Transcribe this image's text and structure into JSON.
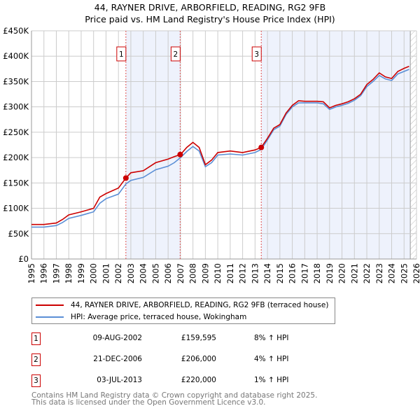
{
  "title_line1": "44, RAYNER DRIVE, ARBORFIELD, READING, RG2 9FB",
  "title_line2": "Price paid vs. HM Land Registry's House Price Index (HPI)",
  "chart_data": {
    "type": "line",
    "title": "44, RAYNER DRIVE, ARBORFIELD, READING, RG2 9FB — Price paid vs. HM Land Registry's House Price Index (HPI)",
    "xlim": [
      1995,
      2026
    ],
    "ylim": [
      0,
      450000
    ],
    "y_ticks": [
      0,
      50000,
      100000,
      150000,
      200000,
      250000,
      300000,
      350000,
      400000,
      450000
    ],
    "y_tick_labels": [
      "£0",
      "£50K",
      "£100K",
      "£150K",
      "£200K",
      "£250K",
      "£300K",
      "£350K",
      "£400K",
      "£450K"
    ],
    "x_tick_labels": [
      "1995",
      "1996",
      "1997",
      "1998",
      "1999",
      "2000",
      "2001",
      "2002",
      "2003",
      "2004",
      "2005",
      "2006",
      "2007",
      "2008",
      "2009",
      "2010",
      "2011",
      "2012",
      "2013",
      "2014",
      "2015",
      "2016",
      "2017",
      "2018",
      "2019",
      "2020",
      "2021",
      "2022",
      "2023",
      "2024",
      "2025",
      "2026"
    ],
    "grid": true,
    "colors": {
      "property": "#cc0000",
      "hpi": "#5b8fd6",
      "shade": "#eef2fc"
    },
    "shaded_periods": [
      [
        2002.6,
        2006.97
      ],
      [
        2013.5,
        2025.5
      ]
    ],
    "forecast_hatch_from": 2025.5,
    "series": [
      {
        "name": "44, RAYNER DRIVE, ARBORFIELD, READING, RG2 9FB (terraced house)",
        "color": "#cc0000",
        "x": [
          1995,
          1996,
          1997,
          1997.5,
          1998,
          1999,
          2000,
          2000.5,
          2001,
          2002,
          2002.6,
          2003,
          2004,
          2005,
          2006,
          2006.5,
          2007,
          2007.5,
          2008,
          2008.5,
          2009,
          2009.5,
          2010,
          2011,
          2012,
          2013,
          2013.5,
          2014,
          2014.5,
          2015,
          2015.5,
          2016,
          2016.5,
          2017,
          2018,
          2018.5,
          2019,
          2019.5,
          2020,
          2020.5,
          2021,
          2021.5,
          2022,
          2022.5,
          2023,
          2023.5,
          2024,
          2024.5,
          2025,
          2025.4
        ],
        "y": [
          68000,
          68000,
          71000,
          78000,
          87000,
          93000,
          100000,
          122000,
          129000,
          140000,
          159595,
          170000,
          174000,
          190000,
          197000,
          202000,
          206000,
          220000,
          230000,
          220000,
          186000,
          195000,
          210000,
          213000,
          210000,
          215000,
          220000,
          238000,
          258000,
          265000,
          288000,
          303000,
          312000,
          311000,
          311000,
          310000,
          298000,
          303000,
          306000,
          310000,
          316000,
          325000,
          344000,
          354000,
          367000,
          359000,
          356000,
          370000,
          376000,
          380000
        ]
      },
      {
        "name": "HPI: Average price, terraced house, Wokingham",
        "color": "#5b8fd6",
        "x": [
          1995,
          1996,
          1997,
          1997.5,
          1998,
          1999,
          2000,
          2000.5,
          2001,
          2002,
          2002.6,
          2003,
          2004,
          2005,
          2006,
          2006.5,
          2007,
          2007.5,
          2008,
          2008.5,
          2009,
          2009.5,
          2010,
          2011,
          2012,
          2013,
          2013.5,
          2014,
          2014.5,
          2015,
          2015.5,
          2016,
          2016.5,
          2017,
          2018,
          2018.5,
          2019,
          2019.5,
          2020,
          2020.5,
          2021,
          2021.5,
          2022,
          2022.5,
          2023,
          2023.5,
          2024,
          2024.5,
          2025,
          2025.4
        ],
        "y": [
          63000,
          63000,
          66000,
          72000,
          80000,
          86000,
          93000,
          110000,
          119000,
          128000,
          148000,
          155000,
          161000,
          176000,
          183000,
          190000,
          200000,
          212000,
          222000,
          213000,
          182000,
          190000,
          205000,
          207000,
          205000,
          210000,
          216000,
          235000,
          255000,
          262000,
          285000,
          300000,
          308000,
          308000,
          308000,
          306000,
          295000,
          300000,
          303000,
          307000,
          313000,
          322000,
          340000,
          350000,
          362000,
          355000,
          352000,
          365000,
          370000,
          374000
        ]
      }
    ],
    "sales": [
      {
        "label": "1",
        "x": 2002.6,
        "y": 159595
      },
      {
        "label": "2",
        "x": 2006.97,
        "y": 206000
      },
      {
        "label": "3",
        "x": 2013.5,
        "y": 220000
      }
    ]
  },
  "legend": [
    {
      "label": "44, RAYNER DRIVE, ARBORFIELD, READING, RG2 9FB (terraced house)"
    },
    {
      "label": "HPI: Average price, terraced house, Wokingham"
    }
  ],
  "transactions": [
    {
      "num": "1",
      "date": "09-AUG-2002",
      "price": "£159,595",
      "hpi": "8% ↑ HPI"
    },
    {
      "num": "2",
      "date": "21-DEC-2006",
      "price": "£206,000",
      "hpi": "4% ↑ HPI"
    },
    {
      "num": "3",
      "date": "03-JUL-2013",
      "price": "£220,000",
      "hpi": "1% ↑ HPI"
    }
  ],
  "footer_line1": "Contains HM Land Registry data © Crown copyright and database right 2025.",
  "footer_line2": "This data is licensed under the Open Government Licence v3.0."
}
